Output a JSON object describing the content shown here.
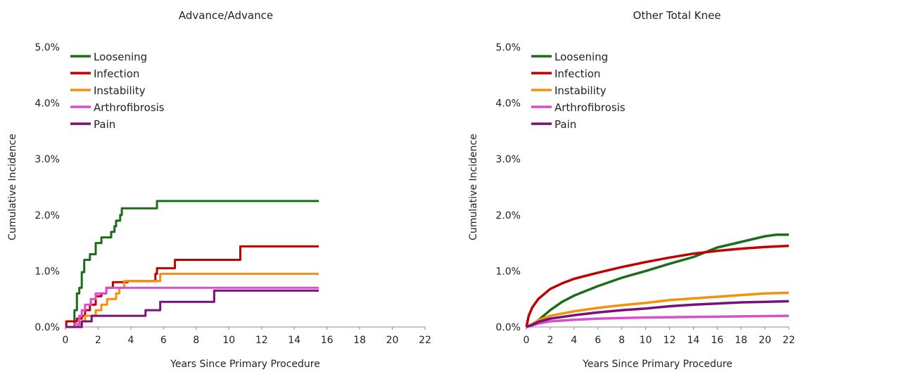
{
  "chart_data": [
    {
      "type": "line",
      "step": true,
      "title": "Advance/Advance",
      "xlabel": "Years Since Primary Procedure",
      "ylabel": "Cumulative Incidence",
      "xlim": [
        0,
        22
      ],
      "ylim": [
        0,
        5
      ],
      "xticks": [
        0,
        2,
        4,
        6,
        8,
        10,
        12,
        14,
        16,
        18,
        20,
        22
      ],
      "yticks": [
        "0.0%",
        "1.0%",
        "2.0%",
        "3.0%",
        "4.0%",
        "5.0%"
      ],
      "legend_position": "top-left",
      "series": [
        {
          "name": "Loosening",
          "color": "#1a6e1a",
          "points": [
            [
              0,
              0
            ],
            [
              0.5,
              0
            ],
            [
              0.55,
              0.3
            ],
            [
              0.7,
              0.6
            ],
            [
              0.85,
              0.7
            ],
            [
              1.0,
              0.98
            ],
            [
              1.15,
              1.2
            ],
            [
              1.5,
              1.3
            ],
            [
              1.85,
              1.5
            ],
            [
              2.2,
              1.6
            ],
            [
              2.8,
              1.7
            ],
            [
              3.0,
              1.8
            ],
            [
              3.1,
              1.9
            ],
            [
              3.35,
              2.0
            ],
            [
              3.45,
              2.12
            ],
            [
              5.6,
              2.25
            ],
            [
              15.5,
              2.25
            ]
          ]
        },
        {
          "name": "Infection",
          "color": "#c00000",
          "points": [
            [
              0,
              0
            ],
            [
              0.05,
              0.1
            ],
            [
              0.6,
              0.1
            ],
            [
              0.7,
              0.15
            ],
            [
              1.0,
              0.2
            ],
            [
              1.2,
              0.3
            ],
            [
              1.5,
              0.4
            ],
            [
              1.85,
              0.55
            ],
            [
              2.2,
              0.6
            ],
            [
              2.5,
              0.7
            ],
            [
              2.9,
              0.8
            ],
            [
              3.8,
              0.82
            ],
            [
              5.5,
              0.95
            ],
            [
              5.6,
              1.05
            ],
            [
              6.7,
              1.2
            ],
            [
              10.7,
              1.44
            ],
            [
              15.5,
              1.44
            ]
          ]
        },
        {
          "name": "Instability",
          "color": "#f5900e",
          "points": [
            [
              0,
              0
            ],
            [
              0.8,
              0.05
            ],
            [
              1.0,
              0.1
            ],
            [
              1.2,
              0.2
            ],
            [
              1.7,
              0.2
            ],
            [
              1.85,
              0.3
            ],
            [
              2.2,
              0.4
            ],
            [
              2.55,
              0.5
            ],
            [
              3.1,
              0.6
            ],
            [
              3.3,
              0.7
            ],
            [
              3.6,
              0.82
            ],
            [
              5.8,
              0.95
            ],
            [
              15.5,
              0.95
            ]
          ]
        },
        {
          "name": "Arthrofibrosis",
          "color": "#d94ecf",
          "points": [
            [
              0,
              0
            ],
            [
              0.55,
              0.05
            ],
            [
              0.85,
              0.2
            ],
            [
              1.0,
              0.3
            ],
            [
              1.2,
              0.4
            ],
            [
              1.55,
              0.5
            ],
            [
              1.85,
              0.6
            ],
            [
              2.5,
              0.7
            ],
            [
              15.5,
              0.7
            ]
          ]
        },
        {
          "name": "Pain",
          "color": "#7a0f7a",
          "points": [
            [
              0,
              0
            ],
            [
              1.0,
              0.1
            ],
            [
              1.6,
              0.2
            ],
            [
              4.9,
              0.3
            ],
            [
              5.8,
              0.45
            ],
            [
              9.1,
              0.65
            ],
            [
              15.5,
              0.65
            ]
          ]
        }
      ]
    },
    {
      "type": "line",
      "step": false,
      "title": "Other Total Knee",
      "xlabel": "Years Since Primary Procedure",
      "ylabel": "Cumulative Incidence",
      "xlim": [
        0,
        22
      ],
      "ylim": [
        0,
        5
      ],
      "xticks": [
        0,
        2,
        4,
        6,
        8,
        10,
        12,
        14,
        16,
        18,
        20,
        22
      ],
      "yticks": [
        "0.0%",
        "1.0%",
        "2.0%",
        "3.0%",
        "4.0%",
        "5.0%"
      ],
      "legend_position": "top-left",
      "series": [
        {
          "name": "Loosening",
          "color": "#1a6e1a",
          "points": [
            [
              0,
              0
            ],
            [
              0.5,
              0.05
            ],
            [
              1,
              0.12
            ],
            [
              2,
              0.3
            ],
            [
              3,
              0.45
            ],
            [
              4,
              0.56
            ],
            [
              6,
              0.73
            ],
            [
              8,
              0.88
            ],
            [
              10,
              1.0
            ],
            [
              12,
              1.13
            ],
            [
              14,
              1.25
            ],
            [
              16,
              1.42
            ],
            [
              18,
              1.52
            ],
            [
              20,
              1.62
            ],
            [
              21,
              1.65
            ],
            [
              22,
              1.65
            ]
          ]
        },
        {
          "name": "Infection",
          "color": "#c00000",
          "points": [
            [
              0,
              0
            ],
            [
              0.2,
              0.2
            ],
            [
              0.5,
              0.35
            ],
            [
              1,
              0.5
            ],
            [
              2,
              0.68
            ],
            [
              3,
              0.78
            ],
            [
              4,
              0.86
            ],
            [
              6,
              0.97
            ],
            [
              8,
              1.07
            ],
            [
              10,
              1.16
            ],
            [
              12,
              1.24
            ],
            [
              14,
              1.31
            ],
            [
              16,
              1.36
            ],
            [
              18,
              1.4
            ],
            [
              20,
              1.43
            ],
            [
              22,
              1.45
            ]
          ]
        },
        {
          "name": "Instability",
          "color": "#f5900e",
          "points": [
            [
              0,
              0
            ],
            [
              0.5,
              0.05
            ],
            [
              1,
              0.12
            ],
            [
              2,
              0.2
            ],
            [
              4,
              0.28
            ],
            [
              6,
              0.34
            ],
            [
              8,
              0.39
            ],
            [
              10,
              0.43
            ],
            [
              12,
              0.48
            ],
            [
              14,
              0.51
            ],
            [
              16,
              0.54
            ],
            [
              18,
              0.57
            ],
            [
              20,
              0.6
            ],
            [
              22,
              0.61
            ]
          ]
        },
        {
          "name": "Arthrofibrosis",
          "color": "#d94ecf",
          "points": [
            [
              0,
              0
            ],
            [
              0.5,
              0.03
            ],
            [
              1,
              0.06
            ],
            [
              2,
              0.1
            ],
            [
              4,
              0.13
            ],
            [
              6,
              0.15
            ],
            [
              8,
              0.16
            ],
            [
              10,
              0.17
            ],
            [
              14,
              0.18
            ],
            [
              18,
              0.19
            ],
            [
              22,
              0.2
            ]
          ]
        },
        {
          "name": "Pain",
          "color": "#7a0f7a",
          "points": [
            [
              0,
              0
            ],
            [
              0.5,
              0.04
            ],
            [
              1,
              0.09
            ],
            [
              2,
              0.15
            ],
            [
              4,
              0.21
            ],
            [
              6,
              0.26
            ],
            [
              8,
              0.3
            ],
            [
              10,
              0.33
            ],
            [
              12,
              0.37
            ],
            [
              14,
              0.4
            ],
            [
              16,
              0.42
            ],
            [
              18,
              0.44
            ],
            [
              20,
              0.45
            ],
            [
              22,
              0.46
            ]
          ]
        }
      ]
    }
  ]
}
